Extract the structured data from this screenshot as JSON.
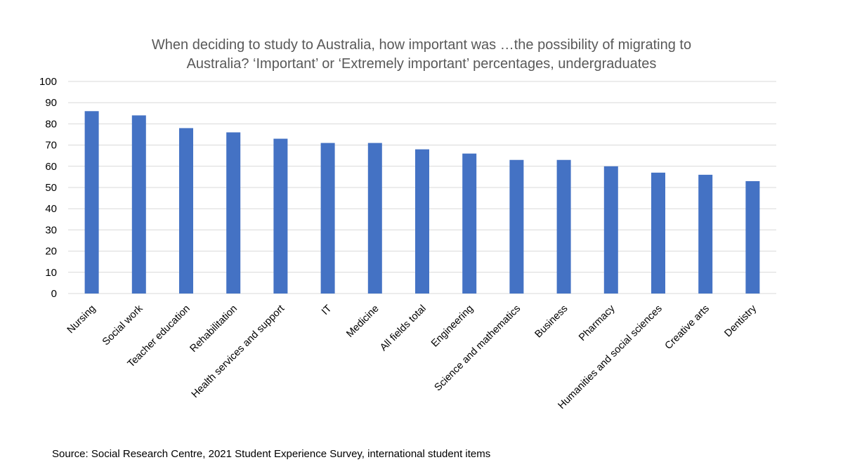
{
  "chart_data": {
    "type": "bar",
    "title_lines": [
      "When deciding to study to Australia, how important was …the possibility of migrating to",
      "Australia? ‘Important’ or ‘Extremely important’ percentages, undergraduates"
    ],
    "xlabel": "",
    "ylabel": "",
    "ylim": [
      0,
      100
    ],
    "y_ticks": [
      "0",
      "10",
      "20",
      "30",
      "40",
      "50",
      "60",
      "70",
      "80",
      "90",
      "100"
    ],
    "grid": true,
    "legend": "none",
    "categories": [
      "Nursing",
      "Social work",
      "Teacher education",
      "Rehabilitation",
      "Health services and support",
      "IT",
      "Medicine",
      "All fields total",
      "Engineering",
      "Science and mathematics",
      "Business",
      "Pharmacy",
      "Humanities and social sciences",
      "Creative arts",
      "Dentistry"
    ],
    "values": [
      86,
      84,
      78,
      76,
      73,
      71,
      71,
      68,
      66,
      63,
      63,
      60,
      57,
      56,
      53
    ],
    "bar_color": "#4472C4",
    "source": "Source: Social Research Centre, 2021 Student Experience Survey, international student items"
  }
}
